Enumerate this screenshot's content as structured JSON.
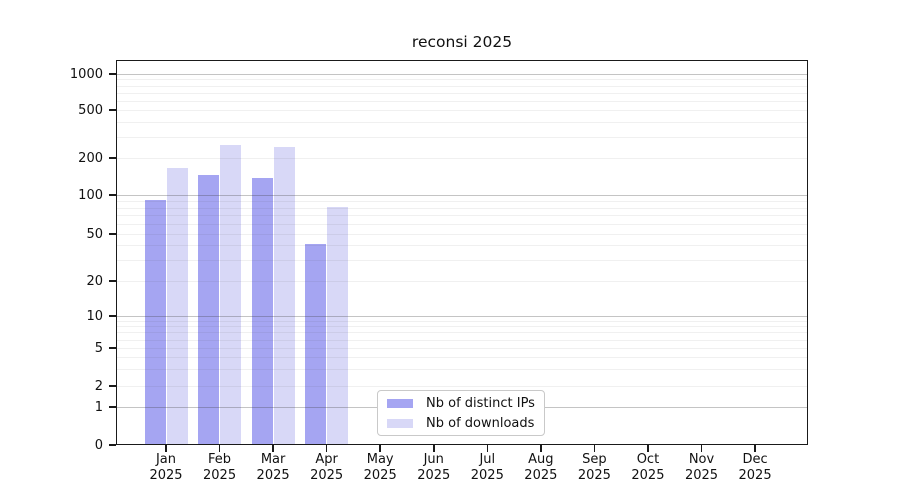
{
  "title": "reconsi 2025",
  "colors": {
    "background": "#ffffff",
    "spine": "#1a1a1a",
    "text": "#111111",
    "major_grid": "#c7c7c7",
    "minor_grid": "#ededed",
    "series_ips": "#a5a5f2",
    "series_downloads": "#d8d8f7"
  },
  "chart_data": {
    "type": "bar",
    "title": "reconsi 2025",
    "xlabel": "",
    "ylabel": "",
    "yscale": "log-like (0, 1, 2, 5, 10, 20, 50, 100, 200, 500, 1000)",
    "ylim": [
      0,
      1300
    ],
    "grid": "horizontal, major decades darker + log minors faint, drawn over bars",
    "legend_position": "inside, bottom center-left, white box with light gray border",
    "categories": [
      "Jan 2025",
      "Feb 2025",
      "Mar 2025",
      "Apr 2025",
      "May 2025",
      "Jun 2025",
      "Jul 2025",
      "Aug 2025",
      "Sep 2025",
      "Oct 2025",
      "Nov 2025",
      "Dec 2025"
    ],
    "y_ticks": {
      "values": [
        1000,
        500,
        200,
        100,
        50,
        20,
        10,
        5,
        2,
        1,
        0
      ],
      "labels": [
        "1000",
        "500",
        "200",
        "100",
        "50",
        "20",
        "10",
        "5",
        "2",
        "1",
        "0"
      ]
    },
    "series": [
      {
        "name": "Nb of distinct IPs",
        "color": "#a5a5f2",
        "values": [
          91,
          145,
          137,
          41,
          null,
          null,
          null,
          null,
          null,
          null,
          null,
          null
        ]
      },
      {
        "name": "Nb of downloads",
        "color": "#d8d8f7",
        "values": [
          165,
          258,
          246,
          81,
          null,
          null,
          null,
          null,
          null,
          null,
          null,
          null
        ]
      }
    ]
  }
}
